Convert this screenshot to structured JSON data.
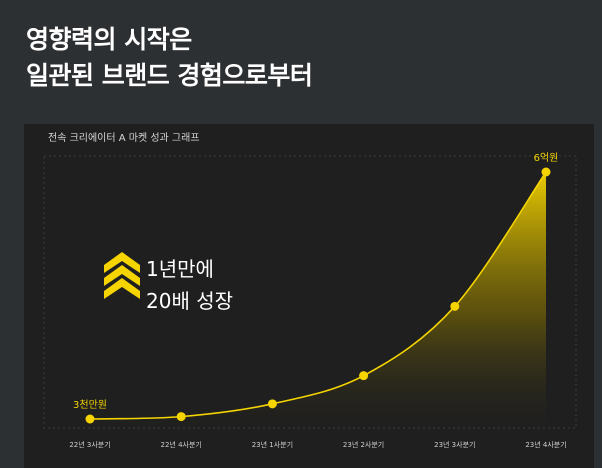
{
  "headline": {
    "line1": "영향력의 시작은",
    "line2": "일관된 브랜드 경험으로부터"
  },
  "panel": {
    "title": "전속 크리에이터 A 마켓 성과 그래프"
  },
  "callout": {
    "line1": "1년만에",
    "line2": "20배 성장",
    "icon": "double-chevron-up-icon"
  },
  "colors": {
    "page_background": "#2d3033",
    "panel_background": "#1f1f1f",
    "accent": "#f5d400",
    "text": "#ffffff"
  },
  "chart_data": {
    "type": "area",
    "title": "전속 크리에이터 A 마켓 성과 그래프",
    "categories": [
      "22년 3사분기",
      "22년 4사분기",
      "23년 1사분기",
      "23년 2사분기",
      "23년 3사분기",
      "23년 4사분기"
    ],
    "series": [
      {
        "values": [
          3000,
          3550,
          6500,
          13000,
          29000,
          60000
        ]
      }
    ],
    "unit": "만원",
    "ylim": [
      0,
      60000
    ],
    "point_labels": [
      {
        "index": 0,
        "text": "3천만원"
      },
      {
        "index": 5,
        "text": "6억원"
      }
    ],
    "grid": false,
    "axes_visible": false
  }
}
